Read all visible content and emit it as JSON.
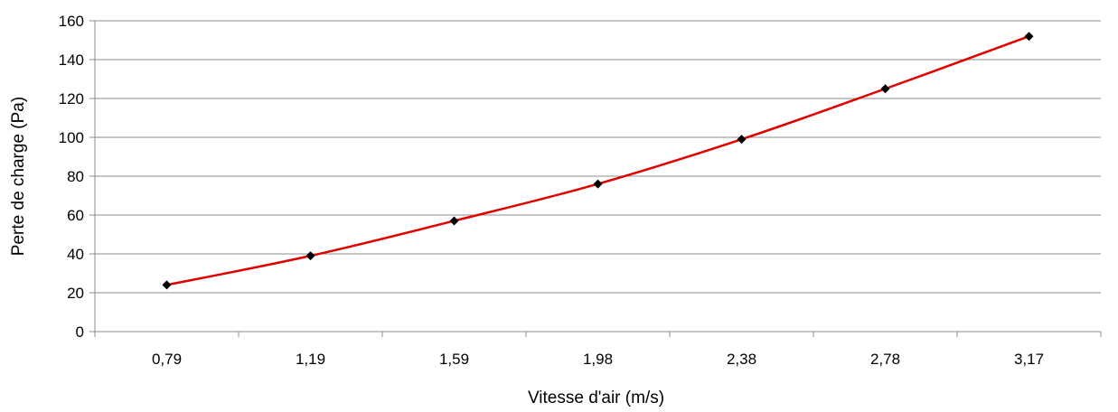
{
  "chart_data": {
    "type": "line",
    "title": "",
    "xlabel": "Vitesse d'air (m/s)",
    "ylabel": "Perte de charge (Pa)",
    "categories": [
      "0,79",
      "1,19",
      "1,59",
      "1,98",
      "2,38",
      "2,78",
      "3,17"
    ],
    "series": [
      {
        "values": [
          24,
          39,
          57,
          76,
          99,
          125,
          152
        ],
        "color": "#e00000",
        "marker": "diamond",
        "marker_color": "#000000"
      }
    ],
    "ylim": [
      0,
      160
    ],
    "yticks": [
      "0",
      "20",
      "40",
      "60",
      "80",
      "100",
      "120",
      "140",
      "160"
    ],
    "grid": true,
    "legend": "none",
    "smooth": true
  }
}
